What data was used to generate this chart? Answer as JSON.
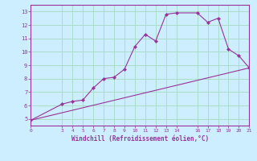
{
  "xlabel": "Windchill (Refroidissement éolien,°C)",
  "ylabel": "",
  "bg_color": "#cceeff",
  "line_color": "#993399",
  "grid_color": "#aaddcc",
  "curve1_x": [
    0,
    3,
    4,
    5,
    6,
    7,
    8,
    9,
    10,
    11,
    12,
    13,
    14,
    16,
    17,
    18,
    19,
    20,
    21
  ],
  "curve1_y": [
    4.9,
    6.1,
    6.3,
    6.4,
    7.3,
    8.0,
    8.1,
    8.7,
    10.4,
    11.3,
    10.8,
    12.8,
    12.9,
    12.9,
    12.2,
    12.5,
    10.2,
    9.7,
    8.8
  ],
  "curve2_x": [
    0,
    21
  ],
  "curve2_y": [
    4.9,
    8.8
  ],
  "xlim": [
    0,
    21
  ],
  "ylim": [
    4.5,
    13.5
  ],
  "xticks": [
    0,
    3,
    4,
    5,
    6,
    7,
    8,
    9,
    10,
    11,
    12,
    13,
    14,
    16,
    17,
    18,
    19,
    20,
    21
  ],
  "yticks": [
    5,
    6,
    7,
    8,
    9,
    10,
    11,
    12,
    13
  ]
}
